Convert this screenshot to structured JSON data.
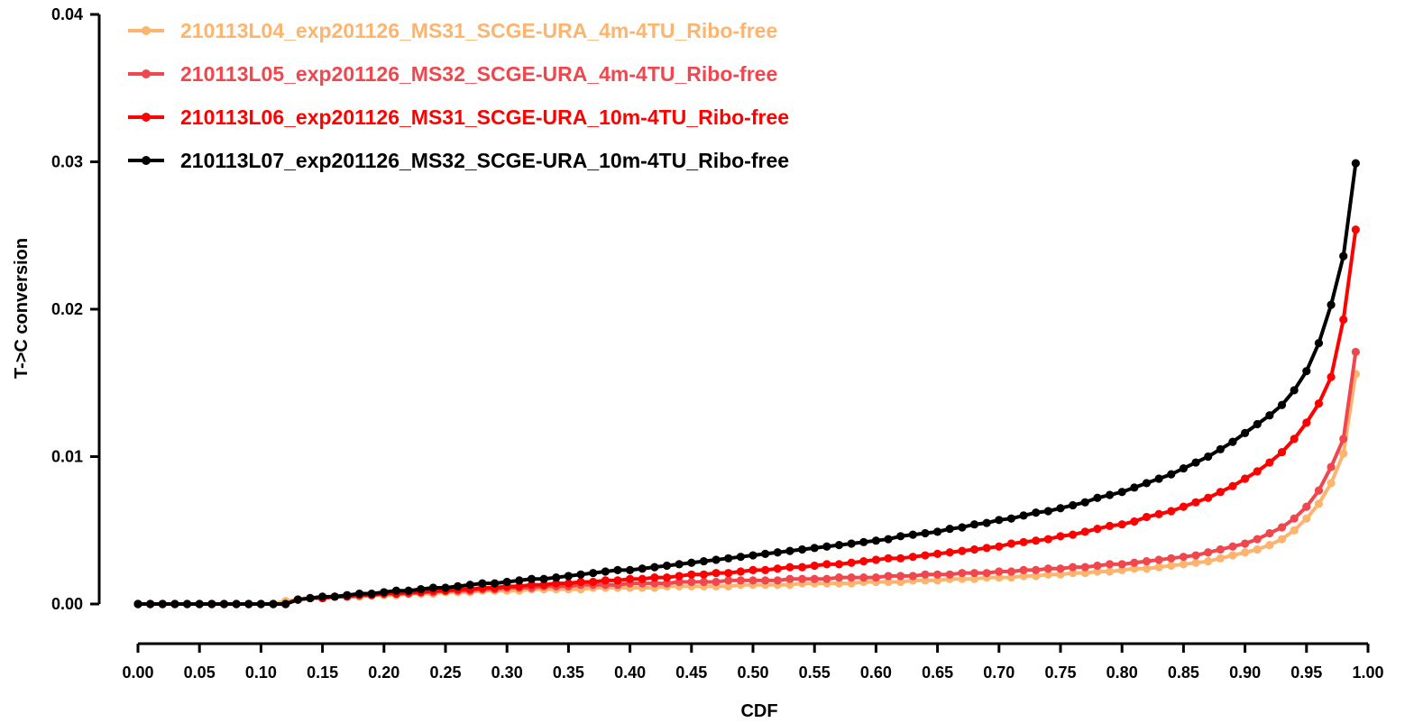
{
  "chart_data": {
    "type": "line",
    "title": "",
    "xlabel": "CDF",
    "ylabel": "T->C conversion",
    "xlim": [
      0,
      1
    ],
    "ylim": [
      0,
      0.04
    ],
    "x_ticks": [
      "0.00",
      "0.05",
      "0.10",
      "0.15",
      "0.20",
      "0.25",
      "0.30",
      "0.35",
      "0.40",
      "0.45",
      "0.50",
      "0.55",
      "0.60",
      "0.65",
      "0.70",
      "0.75",
      "0.80",
      "0.85",
      "0.90",
      "0.95",
      "1.00"
    ],
    "y_ticks": [
      "0.00",
      "0.01",
      "0.02",
      "0.03",
      "0.04"
    ],
    "grid": false,
    "legend_position": "top-left",
    "x": [
      0.0,
      0.01,
      0.02,
      0.03,
      0.04,
      0.05,
      0.06,
      0.07,
      0.08,
      0.09,
      0.1,
      0.11,
      0.12,
      0.13,
      0.14,
      0.15,
      0.16,
      0.17,
      0.18,
      0.19,
      0.2,
      0.21,
      0.22,
      0.23,
      0.24,
      0.25,
      0.26,
      0.27,
      0.28,
      0.29,
      0.3,
      0.31,
      0.32,
      0.33,
      0.34,
      0.35,
      0.36,
      0.37,
      0.38,
      0.39,
      0.4,
      0.41,
      0.42,
      0.43,
      0.44,
      0.45,
      0.46,
      0.47,
      0.48,
      0.49,
      0.5,
      0.51,
      0.52,
      0.53,
      0.54,
      0.55,
      0.56,
      0.57,
      0.58,
      0.59,
      0.6,
      0.61,
      0.62,
      0.63,
      0.64,
      0.65,
      0.66,
      0.67,
      0.68,
      0.69,
      0.7,
      0.71,
      0.72,
      0.73,
      0.74,
      0.75,
      0.76,
      0.77,
      0.78,
      0.79,
      0.8,
      0.81,
      0.82,
      0.83,
      0.84,
      0.85,
      0.86,
      0.87,
      0.88,
      0.89,
      0.9,
      0.91,
      0.92,
      0.93,
      0.94,
      0.95,
      0.96,
      0.97,
      0.98,
      0.99
    ],
    "series": [
      {
        "name": "210113L04_exp201126_MS31_SCGE-URA_4m-4TU_Ribo-free",
        "color": "#FDB46E",
        "values": [
          0,
          0,
          0,
          0,
          0,
          0,
          0,
          0,
          0,
          0,
          0,
          0,
          0.0002,
          0.0003,
          0.0004,
          0.0004,
          0.0005,
          0.0005,
          0.0005,
          0.0006,
          0.0006,
          0.0006,
          0.0007,
          0.0007,
          0.0007,
          0.0008,
          0.0008,
          0.0008,
          0.0009,
          0.0009,
          0.0009,
          0.0009,
          0.001,
          0.001,
          0.001,
          0.001,
          0.001,
          0.0011,
          0.0011,
          0.0011,
          0.0011,
          0.0011,
          0.0011,
          0.0012,
          0.0012,
          0.0012,
          0.0012,
          0.0012,
          0.0012,
          0.0013,
          0.0013,
          0.0013,
          0.0013,
          0.0013,
          0.0014,
          0.0014,
          0.0014,
          0.0014,
          0.0014,
          0.0015,
          0.0015,
          0.0015,
          0.0015,
          0.0016,
          0.0016,
          0.0016,
          0.0017,
          0.0017,
          0.0017,
          0.0018,
          0.0018,
          0.0018,
          0.0019,
          0.0019,
          0.002,
          0.002,
          0.0021,
          0.0021,
          0.0022,
          0.0022,
          0.0023,
          0.0024,
          0.0024,
          0.0025,
          0.0026,
          0.0027,
          0.0028,
          0.0029,
          0.0031,
          0.0033,
          0.0035,
          0.0037,
          0.004,
          0.0044,
          0.005,
          0.0058,
          0.0068,
          0.0082,
          0.0102,
          0.0156
        ]
      },
      {
        "name": "210113L05_exp201126_MS32_SCGE-URA_4m-4TU_Ribo-free",
        "color": "#F0474E",
        "values": [
          0,
          0,
          0,
          0,
          0,
          0,
          0,
          0,
          0,
          0,
          0,
          0,
          0,
          0.0003,
          0.0004,
          0.0004,
          0.0005,
          0.0005,
          0.0006,
          0.0006,
          0.0007,
          0.0007,
          0.0007,
          0.0008,
          0.0008,
          0.0009,
          0.0009,
          0.0009,
          0.001,
          0.001,
          0.0011,
          0.0011,
          0.0011,
          0.0012,
          0.0012,
          0.0012,
          0.0013,
          0.0013,
          0.0013,
          0.0013,
          0.0014,
          0.0014,
          0.0014,
          0.0014,
          0.0015,
          0.0015,
          0.0015,
          0.0015,
          0.0016,
          0.0016,
          0.0016,
          0.0016,
          0.0016,
          0.0017,
          0.0017,
          0.0017,
          0.0017,
          0.0018,
          0.0018,
          0.0018,
          0.0018,
          0.0019,
          0.0019,
          0.0019,
          0.002,
          0.002,
          0.002,
          0.0021,
          0.0021,
          0.0021,
          0.0022,
          0.0022,
          0.0023,
          0.0023,
          0.0024,
          0.0024,
          0.0025,
          0.0025,
          0.0026,
          0.0027,
          0.0027,
          0.0028,
          0.0029,
          0.003,
          0.0031,
          0.0032,
          0.0033,
          0.0035,
          0.0037,
          0.0039,
          0.0041,
          0.0044,
          0.0048,
          0.0052,
          0.0058,
          0.0066,
          0.0077,
          0.0093,
          0.0112,
          0.0171
        ]
      },
      {
        "name": "210113L06_exp201126_MS31_SCGE-URA_10m-4TU_Ribo-free",
        "color": "#FF0000",
        "values": [
          0,
          0,
          0,
          0,
          0,
          0,
          0,
          0,
          0,
          0,
          0,
          0,
          0,
          0.0003,
          0.0004,
          0.0004,
          0.0005,
          0.0005,
          0.0006,
          0.0006,
          0.0007,
          0.0007,
          0.0008,
          0.0008,
          0.0009,
          0.0009,
          0.001,
          0.001,
          0.0011,
          0.0011,
          0.0012,
          0.0012,
          0.0013,
          0.0013,
          0.0014,
          0.0014,
          0.0015,
          0.0015,
          0.0016,
          0.0016,
          0.0017,
          0.0017,
          0.0018,
          0.0018,
          0.0019,
          0.002,
          0.002,
          0.0021,
          0.0021,
          0.0022,
          0.0023,
          0.0023,
          0.0024,
          0.0025,
          0.0025,
          0.0026,
          0.0027,
          0.0027,
          0.0028,
          0.0029,
          0.003,
          0.0031,
          0.0031,
          0.0032,
          0.0033,
          0.0034,
          0.0035,
          0.0036,
          0.0037,
          0.0038,
          0.0039,
          0.0041,
          0.0042,
          0.0043,
          0.0044,
          0.0046,
          0.0047,
          0.0049,
          0.0051,
          0.0053,
          0.0054,
          0.0056,
          0.0059,
          0.0061,
          0.0063,
          0.0066,
          0.0069,
          0.0072,
          0.0076,
          0.008,
          0.0085,
          0.009,
          0.0096,
          0.0103,
          0.0112,
          0.0123,
          0.0136,
          0.0154,
          0.0193,
          0.0254
        ]
      },
      {
        "name": "210113L07_exp201126_MS32_SCGE-URA_10m-4TU_Ribo-free",
        "color": "#000000",
        "values": [
          0,
          0,
          0,
          0,
          0,
          0,
          0,
          0,
          0,
          0,
          0,
          0,
          0,
          0.0003,
          0.0004,
          0.0005,
          0.0005,
          0.0006,
          0.0007,
          0.0007,
          0.0008,
          0.0009,
          0.0009,
          0.001,
          0.0011,
          0.0011,
          0.0012,
          0.0013,
          0.0014,
          0.0014,
          0.0015,
          0.0016,
          0.0017,
          0.0017,
          0.0018,
          0.0019,
          0.002,
          0.0021,
          0.0022,
          0.0023,
          0.0023,
          0.0024,
          0.0025,
          0.0026,
          0.0027,
          0.0028,
          0.0029,
          0.003,
          0.0031,
          0.0032,
          0.0033,
          0.0034,
          0.0035,
          0.0036,
          0.0037,
          0.0038,
          0.0039,
          0.004,
          0.0041,
          0.0042,
          0.0043,
          0.0044,
          0.0046,
          0.0047,
          0.0048,
          0.0049,
          0.0051,
          0.0052,
          0.0054,
          0.0055,
          0.0057,
          0.0058,
          0.006,
          0.0062,
          0.0063,
          0.0065,
          0.0067,
          0.0069,
          0.0072,
          0.0074,
          0.0076,
          0.0079,
          0.0082,
          0.0085,
          0.0088,
          0.0092,
          0.0096,
          0.01,
          0.0105,
          0.011,
          0.0116,
          0.0122,
          0.0128,
          0.0135,
          0.0145,
          0.0158,
          0.0177,
          0.0203,
          0.0236,
          0.0299
        ]
      }
    ]
  }
}
